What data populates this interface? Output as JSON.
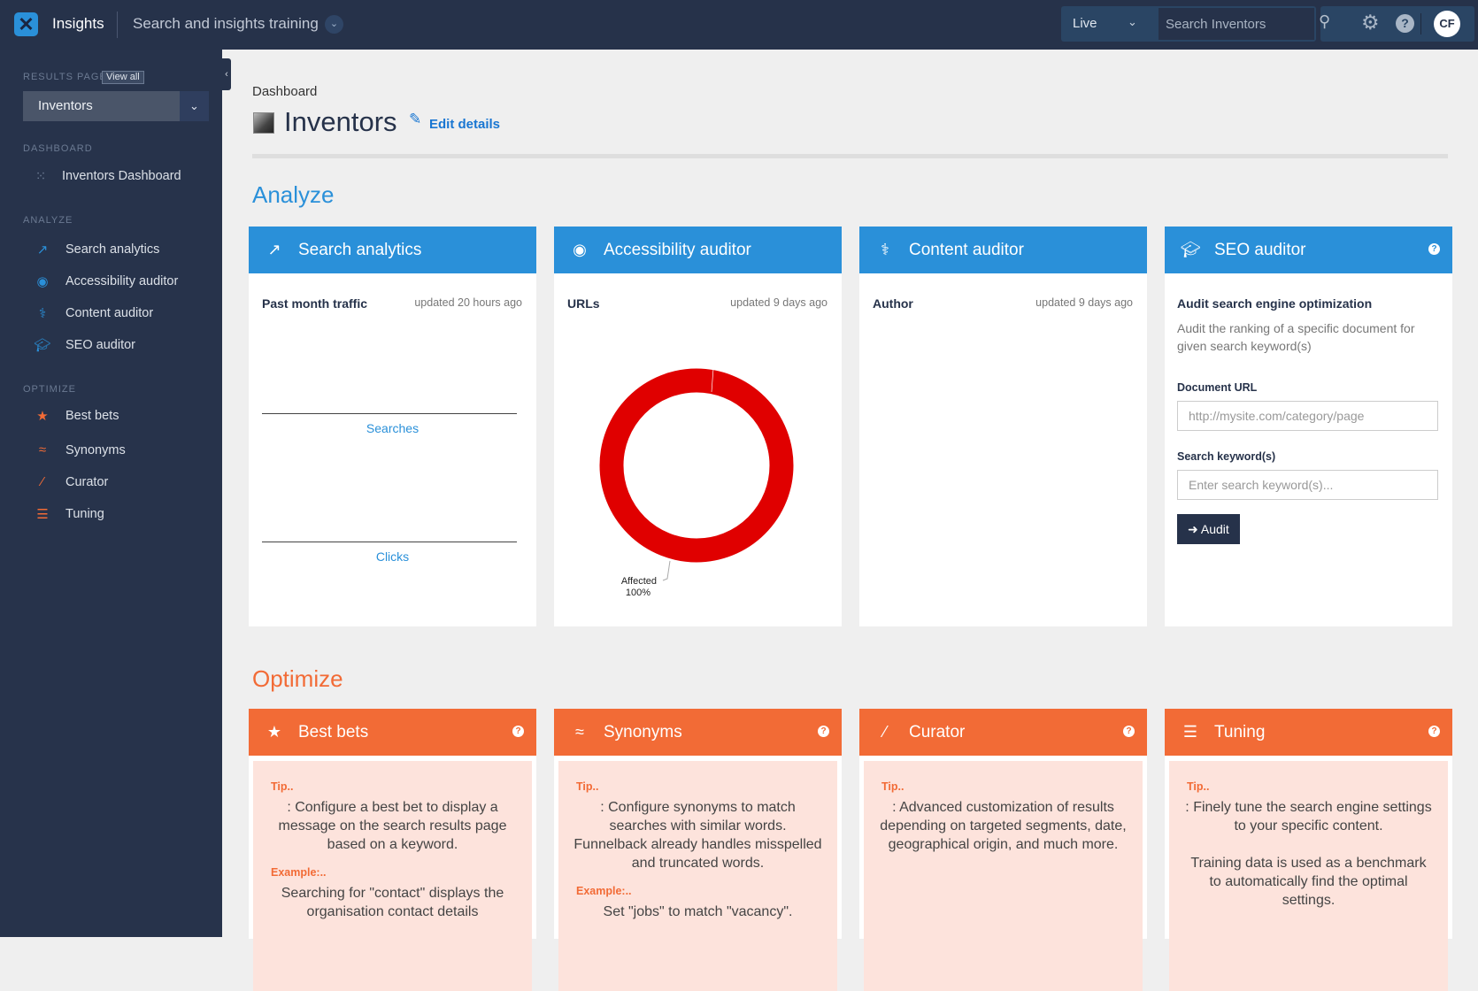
{
  "topbar": {
    "app_name": "Insights",
    "project": "Search and insights training",
    "environment": "Live",
    "search_placeholder": "Search Inventors",
    "user_initials": "CF",
    "logo_icon": "funnelback-logo-icon"
  },
  "sidebar": {
    "results_page_label": "RESULTS PAGE",
    "view_all": "View all",
    "selected_results_page": "Inventors",
    "dashboard_label": "DASHBOARD",
    "dashboard_item": "Inventors Dashboard",
    "analyze_label": "ANALYZE",
    "analyze_items": [
      {
        "label": "Search analytics",
        "icon": "chart-line-icon"
      },
      {
        "label": "Accessibility auditor",
        "icon": "accessibility-icon"
      },
      {
        "label": "Content auditor",
        "icon": "stethoscope-icon"
      },
      {
        "label": "SEO auditor",
        "icon": "graduation-cap-icon"
      }
    ],
    "optimize_label": "OPTIMIZE",
    "optimize_items": [
      {
        "label": "Best bets",
        "icon": "star-icon"
      },
      {
        "label": "Synonyms",
        "icon": "approx-icon"
      },
      {
        "label": "Curator",
        "icon": "magic-wand-icon"
      },
      {
        "label": "Tuning",
        "icon": "sliders-icon"
      }
    ]
  },
  "page": {
    "breadcrumb": "Dashboard",
    "title": "Inventors",
    "edit_label": "Edit details",
    "analyze_heading": "Analyze",
    "optimize_heading": "Optimize"
  },
  "colors": {
    "analyze": "#2a90d9",
    "optimize": "#f26b36",
    "donut": "#e00000",
    "nav": "#27334b"
  },
  "analyze": {
    "search_analytics": {
      "title": "Search analytics",
      "subtitle": "Past month traffic",
      "updated": "updated 20 hours ago",
      "axis1": "Searches",
      "axis2": "Clicks"
    },
    "accessibility": {
      "title": "Accessibility auditor",
      "subtitle": "URLs",
      "updated": "updated 9 days ago"
    },
    "content": {
      "title": "Content auditor",
      "subtitle": "Author",
      "updated": "updated 9 days ago"
    },
    "seo": {
      "title": "SEO auditor",
      "heading": "Audit search engine optimization",
      "description": "Audit the ranking of a specific document for given search keyword(s)",
      "url_label": "Document URL",
      "url_placeholder": "http://mysite.com/category/page",
      "keyword_label": "Search keyword(s)",
      "keyword_placeholder": "Enter search keyword(s)...",
      "audit_button": "Audit"
    }
  },
  "chart_data": {
    "type": "pie",
    "donut": true,
    "categories": [
      "Affected"
    ],
    "values": [
      100
    ],
    "labels": [
      "Affected",
      "100%"
    ]
  },
  "optimize": [
    {
      "title": "Best bets",
      "tip_label": "Tip..",
      "tip": ": Configure a best bet to display a message on the search results page based on a keyword.",
      "example_label": "Example:..",
      "example": "Searching for \"contact\" displays the organisation contact details"
    },
    {
      "title": "Synonyms",
      "tip_label": "Tip..",
      "tip": ": Configure synonyms to match searches with similar words. Funnelback already handles misspelled and truncated words.",
      "example_label": "Example:..",
      "example": "Set \"jobs\" to match \"vacancy\"."
    },
    {
      "title": "Curator",
      "tip_label": "Tip..",
      "tip": ": Advanced customization of results depending on targeted segments, date, geographical origin, and much more."
    },
    {
      "title": "Tuning",
      "tip_label": "Tip..",
      "tip": ": Finely tune the search engine settings to your specific content.",
      "tip2": "Training data is used as a benchmark to automatically find the optimal settings."
    }
  ]
}
